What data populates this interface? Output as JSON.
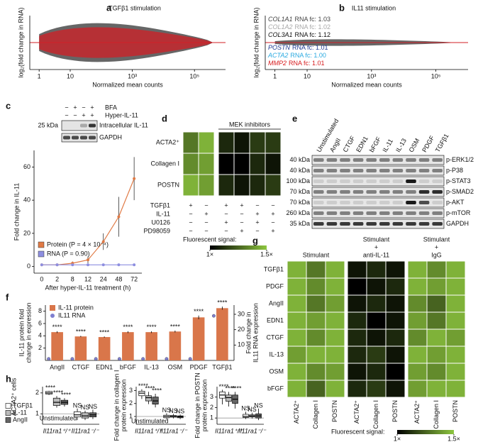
{
  "chart_data": [
    {
      "type": "ma",
      "panel": "a",
      "title": "TGFβ1 stimulation",
      "xlabel": "Normalized mean counts",
      "ylabel": "log₂(fold change in RNA)",
      "log_x": true,
      "xlim": [
        0.5,
        1000000
      ],
      "xticks": [
        1,
        10,
        {
          "value": 1000,
          "label": "10³"
        },
        {
          "value": 100000,
          "label": "10⁵"
        }
      ],
      "cloud_colors": [
        "#555555",
        "#d21f26"
      ]
    },
    {
      "type": "ma",
      "panel": "b",
      "title": "IL11 stimulation",
      "xlabel": "Normalized mean counts",
      "ylabel": "log₂(fold change in RNA)",
      "log_x": true,
      "xlim": [
        0.5,
        1000000
      ],
      "xticks": [
        1,
        10,
        {
          "value": 1000,
          "label": "10³"
        },
        {
          "value": 100000,
          "label": "10⁵"
        }
      ],
      "cloud_colors": [
        "#555555",
        "#d21f26"
      ],
      "annotations": [
        {
          "gene": "COL1A1",
          "label": "RNA fc: 1.03",
          "color": "#444444"
        },
        {
          "gene": "COL1A2",
          "label": "RNA fc: 1.02",
          "color": "#a8a8a8"
        },
        {
          "gene": "COL3A1",
          "label": "RNA fc: 1.12",
          "color": "#111111"
        },
        {
          "gene": "POSTN",
          "label": "RNA fc: 1.01",
          "color": "#1f3a93"
        },
        {
          "gene": "ACTA2",
          "label": "RNA fc: 1.00",
          "color": "#29a9e0"
        },
        {
          "gene": "MMP2",
          "label": "RNA fc: 1.01",
          "color": "#d7191c"
        }
      ]
    },
    {
      "type": "line",
      "panel": "c",
      "ylabel": "Fold change in IL-11",
      "xlabel": "After hyper-IL-11 treatment (h)",
      "categories": [
        "0",
        "2",
        "8",
        "12",
        "24",
        "48",
        "72"
      ],
      "ylim": [
        -4,
        70
      ],
      "yticks": [
        0,
        20,
        40,
        60
      ],
      "series": [
        {
          "name": "Protein (P = 4 × 10⁻⁴)",
          "color": "#e07a45",
          "values": [
            1,
            1,
            2,
            4,
            15,
            30,
            53
          ],
          "errors": [
            0.3,
            0.4,
            1,
            2,
            5,
            12,
            13
          ]
        },
        {
          "name": "RNA (P = 0.90)",
          "color": "#8d8ee0",
          "values": [
            1,
            1,
            1,
            1,
            1,
            1,
            1
          ],
          "errors": [
            0.1,
            0.1,
            0.1,
            0.1,
            0.1,
            0.1,
            0.1
          ]
        }
      ],
      "blot": {
        "rows": [
          {
            "label": "BFA",
            "signs": [
              "−",
              "+",
              "−",
              "+"
            ]
          },
          {
            "label": "Hyper-IL-11",
            "signs": [
              "−",
              "−",
              "+",
              "+"
            ]
          }
        ],
        "marker": "25 kDa",
        "bands": [
          "Intracellular IL-11",
          "GAPDH"
        ]
      }
    },
    {
      "type": "heatmap",
      "panel": "d",
      "header": "MEK inhibitors",
      "rows": [
        "ACTA2⁺",
        "Collagen I",
        "POSTN"
      ],
      "values": [
        [
          1.3,
          1.45,
          1.1,
          1.05,
          1.15,
          1.15
        ],
        [
          1.35,
          1.4,
          1.0,
          1.0,
          1.1,
          1.05
        ],
        [
          1.45,
          1.4,
          1.1,
          1.05,
          1.1,
          1.15
        ]
      ],
      "treatments": [
        {
          "label": "TGFβ1",
          "signs": [
            "+",
            "−",
            "+",
            "+",
            "−",
            "−"
          ]
        },
        {
          "label": "IL-11",
          "signs": [
            "−",
            "+",
            "−",
            "−",
            "+",
            "+"
          ]
        },
        {
          "label": "U0126",
          "signs": [
            "−",
            "−",
            "+",
            "−",
            "+",
            "−"
          ]
        },
        {
          "label": "PD98059",
          "signs": [
            "−",
            "−",
            "−",
            "+",
            "−",
            "+"
          ]
        }
      ],
      "colors": [
        "#000000",
        "#8dc63f"
      ],
      "colorbar": {
        "label": "Fluorescent signal:",
        "ticks": [
          {
            "value": 1,
            "label": "1×"
          },
          {
            "value": 1.5,
            "label": "1.5×"
          }
        ]
      }
    },
    {
      "type": "blot",
      "panel": "e",
      "lanes": [
        "Unstimulated",
        "AngII",
        "CTGF",
        "EDN1",
        "bFGF",
        "IL-11",
        "IL-13",
        "OSM",
        "PDGF",
        "TGFβ1"
      ],
      "rows": [
        {
          "label": "p-ERK1/2",
          "marker": "40 kDa"
        },
        {
          "label": "p-P38",
          "marker": "40 kDa"
        },
        {
          "label": "p-STAT3",
          "marker": "100 kDa"
        },
        {
          "label": "p-SMAD2",
          "marker": "70 kDa"
        },
        {
          "label": "p-AKT",
          "marker": "70 kDa"
        },
        {
          "label": "p-mTOR",
          "marker": "260 kDa"
        },
        {
          "label": "GAPDH",
          "marker": "35 kDa"
        }
      ]
    },
    {
      "type": "bar",
      "panel": "f",
      "categories": [
        "AngII",
        "CTGF",
        "EDN1",
        "bFGF",
        "IL-13",
        "OSM",
        "PDGF",
        "TGFβ1"
      ],
      "ylabel": [
        "IL-11 protein fold",
        "change in expression"
      ],
      "y2label": [
        "Fold change in",
        "IL11 RNA expression"
      ],
      "ylim": [
        0,
        9
      ],
      "yticks": [
        2,
        4,
        6,
        8
      ],
      "y2lim": [
        0,
        36
      ],
      "y2ticks": [
        10,
        20,
        30
      ],
      "series": [
        {
          "name": "IL-11 protein",
          "color": "#d9764a",
          "values": [
            4.6,
            3.9,
            3.8,
            4.6,
            4.6,
            4.7,
            7.0,
            8.5
          ],
          "errors": [
            0.15,
            0.1,
            0.1,
            0.15,
            0.15,
            0.15,
            0.3,
            0.25
          ],
          "annotations": [
            "****",
            "****",
            "****",
            "****",
            "****",
            "****",
            "****",
            "****"
          ]
        },
        {
          "name": "IL11 RNA",
          "color": "#7f7fd0",
          "axis": "y2",
          "values": [
            1,
            1,
            1,
            1,
            1,
            1,
            1,
            29
          ]
        }
      ]
    },
    {
      "type": "heatmap",
      "panel": "g",
      "groups": [
        [
          "Stimulant"
        ],
        [
          "Stimulant",
          "+",
          "anti-IL-11"
        ],
        [
          "Stimulant",
          "+",
          "IgG"
        ]
      ],
      "columns": [
        "ACTA2⁺",
        "Collagen I",
        "POSTN"
      ],
      "rows": [
        "TGFβ1",
        "PDGF",
        "AngII",
        "EDN1",
        "CTGF",
        "IL-13",
        "OSM",
        "bFGF"
      ],
      "values": [
        [
          1.45,
          1.3,
          1.45,
          1.05,
          1.1,
          1.05,
          1.45,
          1.35,
          1.45
        ],
        [
          1.45,
          1.35,
          1.45,
          1.0,
          1.05,
          1.1,
          1.45,
          1.4,
          1.45
        ],
        [
          1.45,
          1.3,
          1.4,
          1.05,
          1.1,
          1.05,
          1.35,
          1.25,
          1.45
        ],
        [
          1.45,
          1.4,
          1.45,
          1.1,
          1.0,
          1.05,
          1.4,
          1.3,
          1.45
        ],
        [
          1.45,
          1.35,
          1.45,
          1.1,
          1.05,
          1.1,
          1.35,
          1.45,
          1.4
        ],
        [
          1.4,
          1.45,
          1.45,
          1.1,
          1.15,
          1.05,
          1.45,
          1.4,
          1.45
        ],
        [
          1.45,
          1.35,
          1.4,
          1.05,
          1.1,
          1.0,
          1.4,
          1.35,
          1.45
        ],
        [
          1.45,
          1.25,
          1.45,
          1.1,
          1.15,
          1.05,
          1.4,
          1.45,
          1.45
        ]
      ],
      "colors": [
        "#000000",
        "#8dc63f"
      ],
      "colorbar": {
        "label": "Fluorescent signal:",
        "ticks": [
          {
            "value": 1,
            "label": "1×"
          },
          {
            "value": 1.5,
            "label": "1.5×"
          }
        ]
      }
    },
    {
      "type": "box",
      "panel": "h",
      "ylabel": [
        "ACTA2⁺ cells"
      ],
      "ylim": [
        0.5,
        2.3
      ],
      "yticks": [
        1,
        2
      ],
      "groups": [
        "Il11ra1⁺/⁺",
        "Il11ra1⁻/⁻"
      ],
      "reference": 1,
      "reference_label": "Unstimulated",
      "series": [
        {
          "name": "TGFβ1",
          "color": "#ffffff",
          "labels": [
            "****",
            "NS"
          ],
          "boxes": [
            {
              "min": 1.9,
              "q1": 1.95,
              "median": 2.0,
              "q3": 2.07,
              "max": 2.1
            },
            {
              "min": 0.7,
              "q1": 0.85,
              "median": 0.95,
              "q3": 1.1,
              "max": 1.25
            }
          ]
        },
        {
          "name": "IL-11",
          "color": "#bbbbbb",
          "labels": [
            "****",
            "NS"
          ],
          "boxes": [
            {
              "min": 1.3,
              "q1": 1.4,
              "median": 1.55,
              "q3": 1.75,
              "max": 1.85
            },
            {
              "min": 0.7,
              "q1": 0.8,
              "median": 0.9,
              "q3": 1.05,
              "max": 1.15
            }
          ]
        },
        {
          "name": "AngII",
          "color": "#666666",
          "labels": [
            "****",
            "NS"
          ],
          "boxes": [
            {
              "min": 1.35,
              "q1": 1.45,
              "median": 1.55,
              "q3": 1.65,
              "max": 1.75
            },
            {
              "min": 0.75,
              "q1": 0.85,
              "median": 0.95,
              "q3": 1.05,
              "max": 1.2
            }
          ]
        }
      ]
    },
    {
      "type": "box",
      "ylabel": [
        "Fold change in collagen I",
        "protein expression"
      ],
      "ylim": [
        0.4,
        3.3
      ],
      "yticks": [
        1,
        2,
        3
      ],
      "groups": [
        "Il11ra1⁺/⁺",
        "Il11ra1⁻/⁻"
      ],
      "reference": 1,
      "reference_label": "Unstimulated",
      "series": [
        {
          "color": "#ffffff",
          "labels": [
            "****",
            "NS"
          ],
          "boxes": [
            {
              "min": 2.35,
              "q1": 2.6,
              "median": 2.8,
              "q3": 2.95,
              "max": 3.1
            },
            {
              "min": 0.8,
              "q1": 0.9,
              "median": 1.0,
              "q3": 1.1,
              "max": 1.25
            }
          ]
        },
        {
          "color": "#bbbbbb",
          "labels": [
            "****",
            "NS"
          ],
          "boxes": [
            {
              "min": 1.95,
              "q1": 2.2,
              "median": 2.45,
              "q3": 2.6,
              "max": 2.9
            },
            {
              "min": 0.85,
              "q1": 0.95,
              "median": 1.0,
              "q3": 1.08,
              "max": 1.2
            }
          ]
        },
        {
          "color": "#666666",
          "labels": [
            "****",
            "NS"
          ],
          "boxes": [
            {
              "min": 1.7,
              "q1": 1.95,
              "median": 2.2,
              "q3": 2.5,
              "max": 2.75
            },
            {
              "min": 0.8,
              "q1": 0.9,
              "median": 0.98,
              "q3": 1.05,
              "max": 1.15
            }
          ]
        }
      ]
    },
    {
      "type": "box",
      "ylabel": [
        "Fold change in POSTN",
        "protein expression"
      ],
      "ylim": [
        0.4,
        4.0
      ],
      "yticks": [
        1,
        2,
        3
      ],
      "groups": [
        "Il11ra1⁺/⁺",
        "Il11ra1⁻/⁻"
      ],
      "reference": 1,
      "series": [
        {
          "color": "#ffffff",
          "labels": [
            "****",
            "NS"
          ],
          "boxes": [
            {
              "min": 2.3,
              "q1": 2.9,
              "median": 3.2,
              "q3": 3.5,
              "max": 3.7
            },
            {
              "min": 0.9,
              "q1": 1.05,
              "median": 1.15,
              "q3": 1.35,
              "max": 1.6
            }
          ]
        },
        {
          "color": "#bbbbbb",
          "labels": [
            "****",
            "NS"
          ],
          "boxes": [
            {
              "min": 2.1,
              "q1": 2.6,
              "median": 2.95,
              "q3": 3.2,
              "max": 3.5
            },
            {
              "min": 0.95,
              "q1": 1.1,
              "median": 1.2,
              "q3": 1.3,
              "max": 1.5
            }
          ]
        },
        {
          "color": "#666666",
          "labels": [
            "****",
            "NS"
          ],
          "boxes": [
            {
              "min": 1.9,
              "q1": 2.4,
              "median": 2.8,
              "q3": 3.2,
              "max": 3.5
            },
            {
              "min": 0.8,
              "q1": 1.0,
              "median": 1.2,
              "q3": 1.4,
              "max": 1.9
            }
          ]
        }
      ]
    }
  ]
}
